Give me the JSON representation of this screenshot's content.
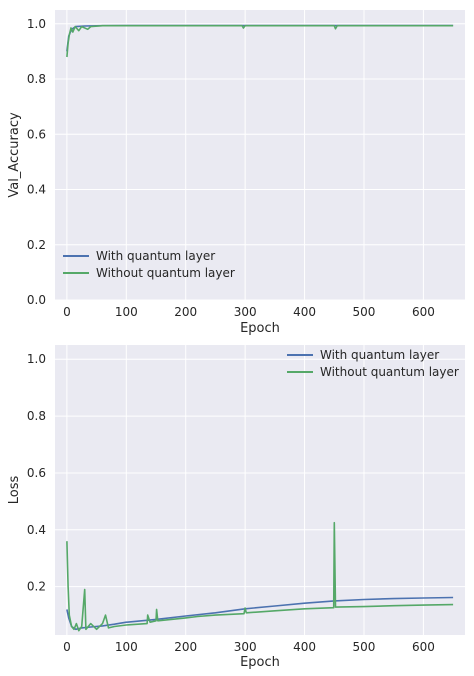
{
  "colors": {
    "plot_bg": "#eaeaf2",
    "grid": "#ffffff",
    "with_quantum": "#4c72b0",
    "without_quantum": "#55a868",
    "text": "#262626"
  },
  "chart_data": [
    {
      "type": "line",
      "xlabel": "Epoch",
      "ylabel": "Val_Accuracy",
      "xlim": [
        -20,
        670
      ],
      "ylim": [
        0.0,
        1.05
      ],
      "xticks": [
        "0",
        "100",
        "200",
        "300",
        "400",
        "500",
        "600"
      ],
      "yticks": [
        "0.0",
        "0.2",
        "0.4",
        "0.6",
        "0.8",
        "1.0"
      ],
      "grid": true,
      "legend_position": "lower-left",
      "series": [
        {
          "name": "With quantum layer",
          "points": [
            [
              0,
              0.9
            ],
            [
              3,
              0.955
            ],
            [
              8,
              0.98
            ],
            [
              15,
              0.99
            ],
            [
              30,
              0.992
            ],
            [
              60,
              0.993
            ],
            [
              100,
              0.994
            ],
            [
              200,
              0.994
            ],
            [
              300,
              0.994
            ],
            [
              400,
              0.994
            ],
            [
              500,
              0.994
            ],
            [
              650,
              0.994
            ]
          ]
        },
        {
          "name": "Without quantum layer",
          "points": [
            [
              0,
              0.88
            ],
            [
              2,
              0.93
            ],
            [
              4,
              0.96
            ],
            [
              7,
              0.985
            ],
            [
              10,
              0.97
            ],
            [
              14,
              0.99
            ],
            [
              20,
              0.975
            ],
            [
              25,
              0.99
            ],
            [
              35,
              0.98
            ],
            [
              40,
              0.99
            ],
            [
              60,
              0.993
            ],
            [
              100,
              0.993
            ],
            [
              200,
              0.993
            ],
            [
              295,
              0.993
            ],
            [
              297,
              0.985
            ],
            [
              300,
              0.993
            ],
            [
              450,
              0.993
            ],
            [
              452,
              0.982
            ],
            [
              455,
              0.993
            ],
            [
              650,
              0.993
            ]
          ]
        }
      ]
    },
    {
      "type": "line",
      "xlabel": "Epoch",
      "ylabel": "Loss",
      "xlim": [
        -20,
        670
      ],
      "ylim": [
        0.03,
        1.05
      ],
      "xticks": [
        "0",
        "100",
        "200",
        "300",
        "400",
        "500",
        "600"
      ],
      "yticks": [
        "0.2",
        "0.4",
        "0.6",
        "0.8",
        "1.0"
      ],
      "grid": true,
      "legend_position": "top-right",
      "series": [
        {
          "name": "With quantum layer",
          "points": [
            [
              0,
              0.12
            ],
            [
              3,
              0.09
            ],
            [
              8,
              0.06
            ],
            [
              15,
              0.05
            ],
            [
              25,
              0.055
            ],
            [
              40,
              0.058
            ],
            [
              60,
              0.062
            ],
            [
              80,
              0.068
            ],
            [
              100,
              0.075
            ],
            [
              150,
              0.085
            ],
            [
              200,
              0.097
            ],
            [
              250,
              0.108
            ],
            [
              300,
              0.122
            ],
            [
              350,
              0.132
            ],
            [
              400,
              0.142
            ],
            [
              450,
              0.15
            ],
            [
              500,
              0.155
            ],
            [
              550,
              0.158
            ],
            [
              600,
              0.16
            ],
            [
              650,
              0.162
            ]
          ]
        },
        {
          "name": "Without quantum layer",
          "points": [
            [
              0,
              0.36
            ],
            [
              2,
              0.2
            ],
            [
              4,
              0.1
            ],
            [
              8,
              0.06
            ],
            [
              12,
              0.05
            ],
            [
              16,
              0.07
            ],
            [
              20,
              0.045
            ],
            [
              25,
              0.06
            ],
            [
              30,
              0.19
            ],
            [
              32,
              0.05
            ],
            [
              40,
              0.07
            ],
            [
              50,
              0.05
            ],
            [
              60,
              0.07
            ],
            [
              65,
              0.1
            ],
            [
              70,
              0.055
            ],
            [
              80,
              0.06
            ],
            [
              100,
              0.065
            ],
            [
              135,
              0.07
            ],
            [
              136,
              0.1
            ],
            [
              140,
              0.075
            ],
            [
              150,
              0.08
            ],
            [
              151,
              0.12
            ],
            [
              153,
              0.08
            ],
            [
              200,
              0.09
            ],
            [
              220,
              0.095
            ],
            [
              250,
              0.1
            ],
            [
              298,
              0.105
            ],
            [
              300,
              0.125
            ],
            [
              302,
              0.108
            ],
            [
              350,
              0.115
            ],
            [
              400,
              0.122
            ],
            [
              449,
              0.126
            ],
            [
              450,
              0.425
            ],
            [
              452,
              0.128
            ],
            [
              500,
              0.13
            ],
            [
              550,
              0.133
            ],
            [
              600,
              0.135
            ],
            [
              650,
              0.137
            ]
          ]
        }
      ]
    }
  ]
}
